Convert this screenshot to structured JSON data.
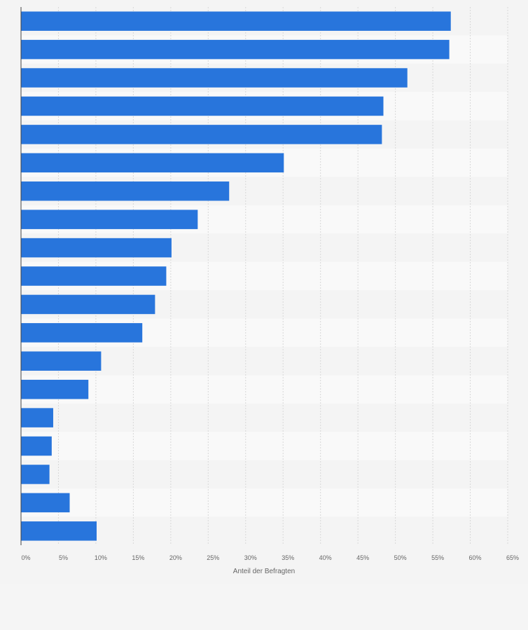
{
  "chart_data": {
    "type": "bar",
    "orientation": "horizontal",
    "xlabel": "Anteil der Befragten",
    "xlim": [
      0,
      65
    ],
    "x_ticks": [
      "0%",
      "5%",
      "10%",
      "15%",
      "20%",
      "25%",
      "30%",
      "35%",
      "40%",
      "45%",
      "50%",
      "55%",
      "60%",
      "65%"
    ],
    "values": [
      57.4,
      57.2,
      51.6,
      48.4,
      48.2,
      35.1,
      27.8,
      23.6,
      20.1,
      19.4,
      17.9,
      16.2,
      10.7,
      9.0,
      4.3,
      4.1,
      3.8,
      6.5,
      10.1
    ],
    "bar_color": "#2875dc",
    "grid": true,
    "row_colors": [
      "#f4f4f4",
      "#f9f9f9"
    ]
  }
}
